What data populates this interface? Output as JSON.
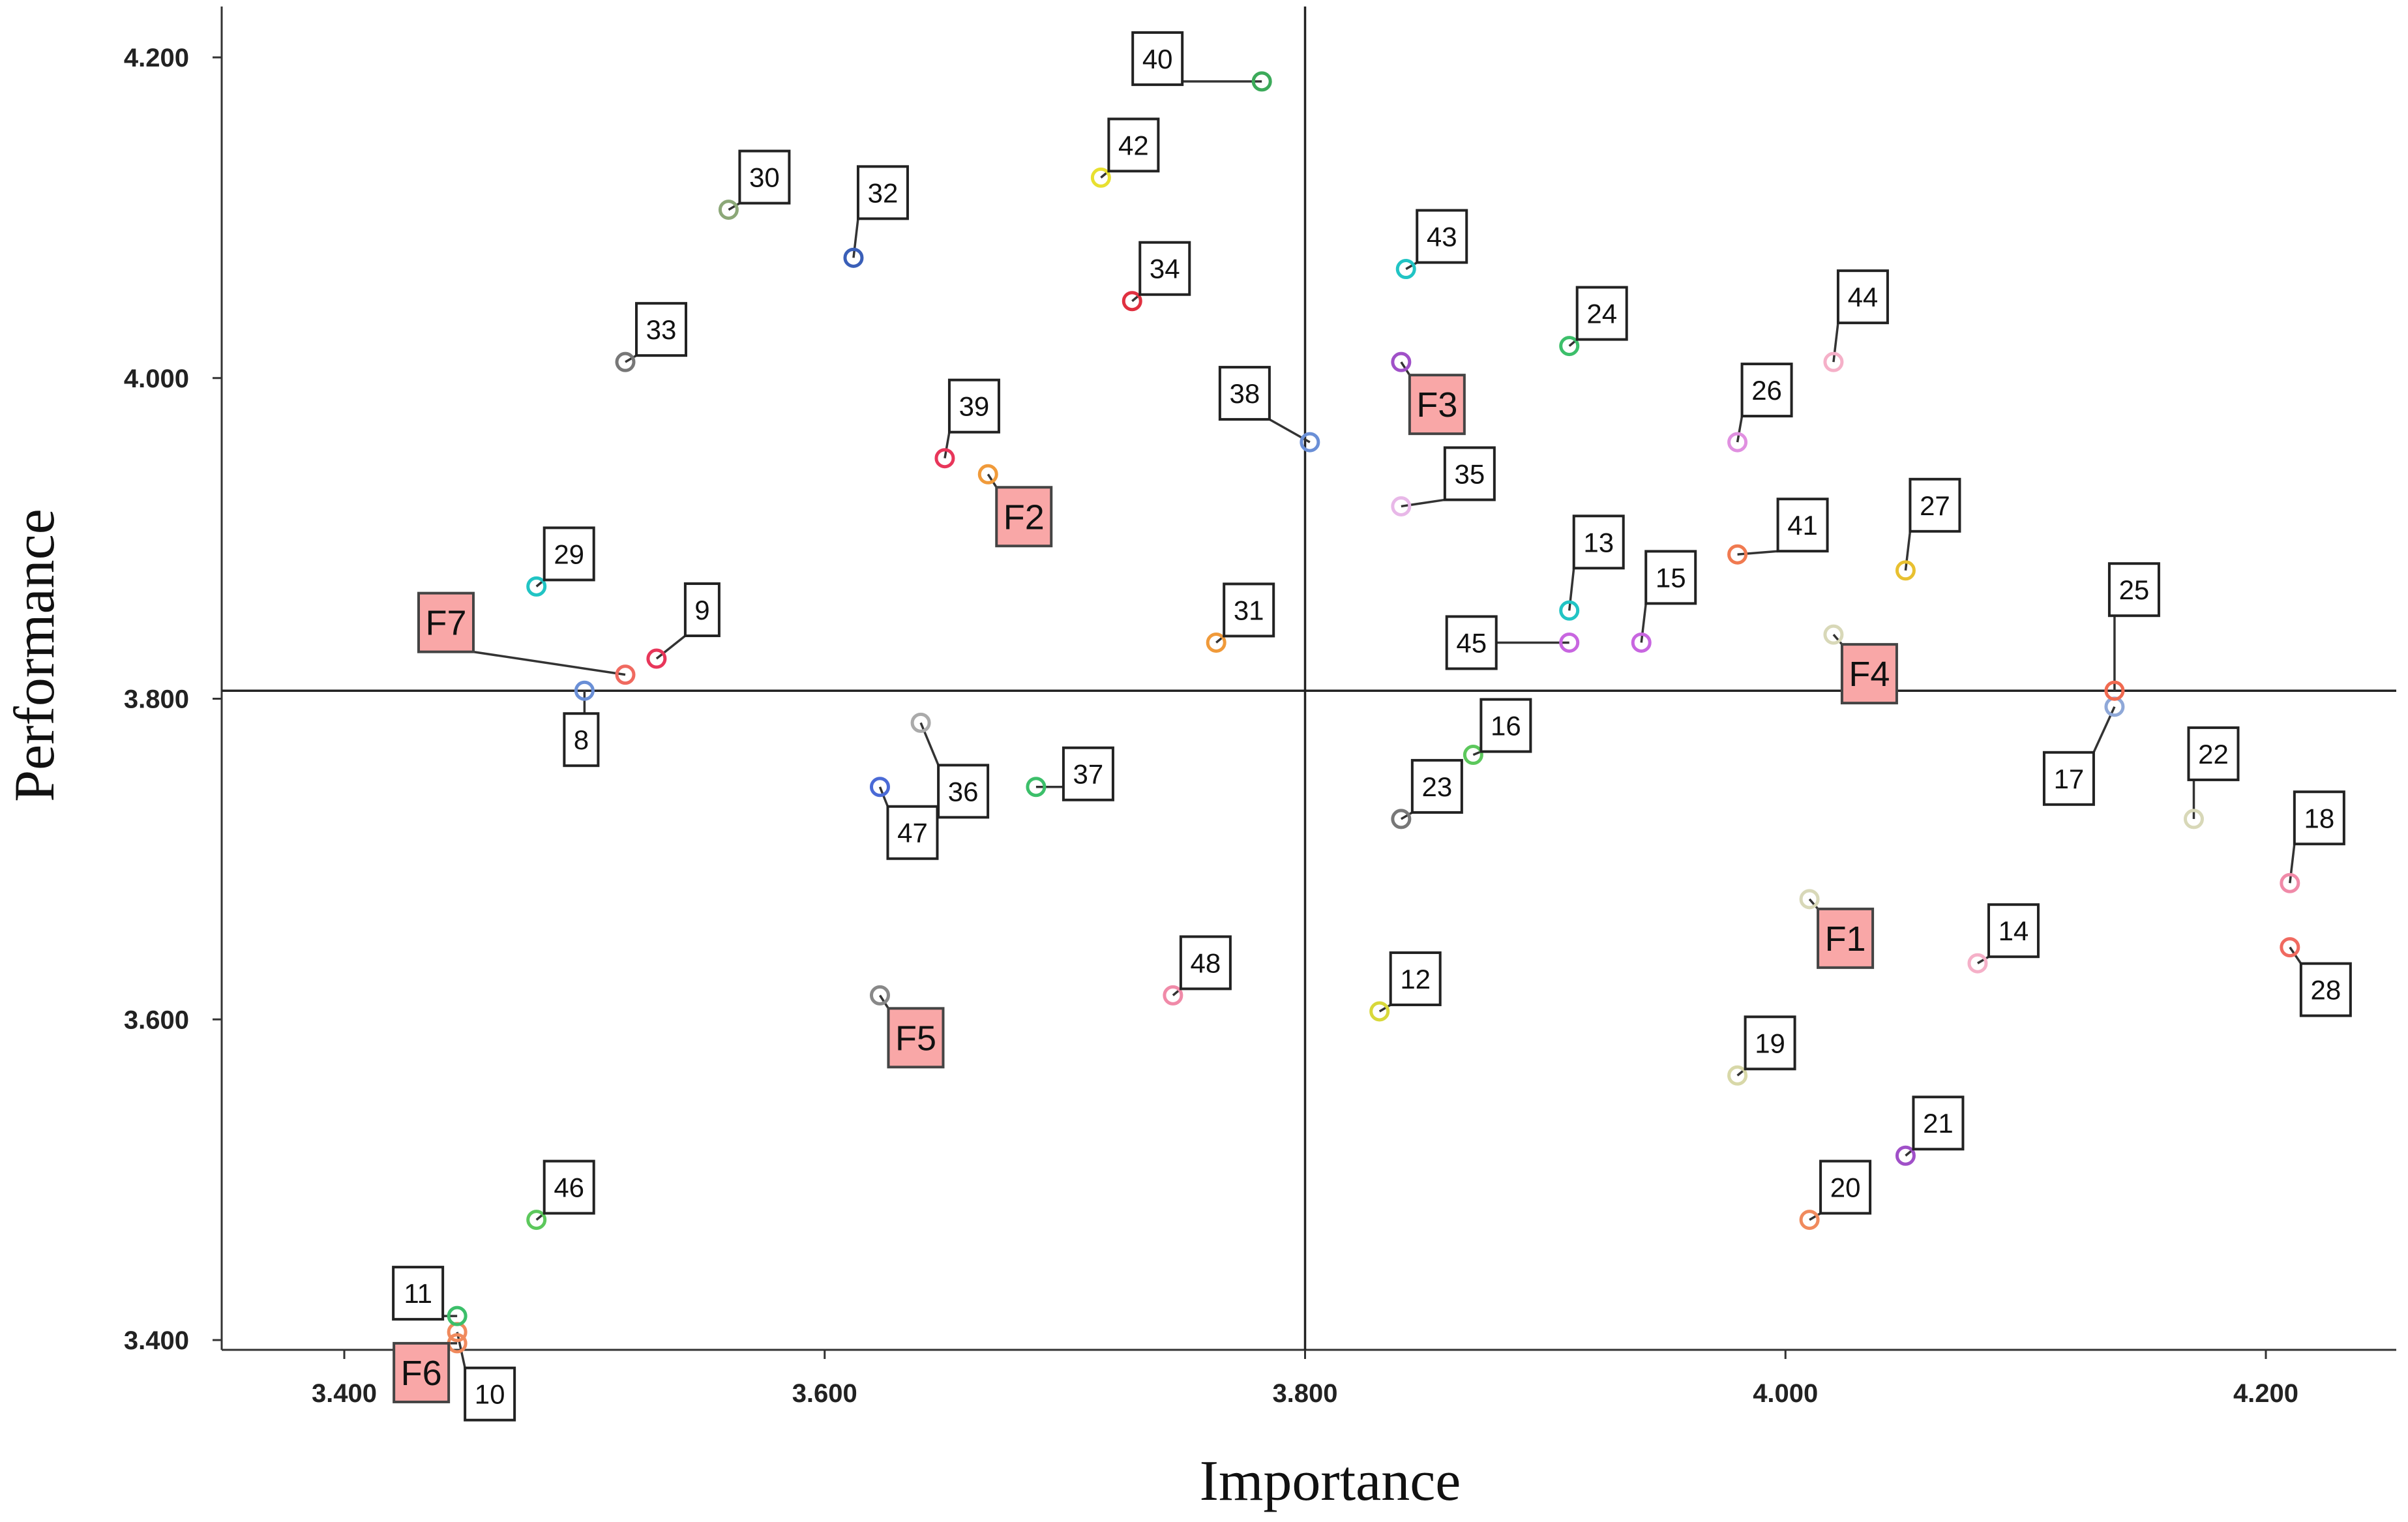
{
  "chart_data": {
    "type": "scatter",
    "xlabel": "Importance",
    "ylabel": "Performance",
    "xlim": [
      3.35,
      4.26
    ],
    "ylim": [
      3.35,
      4.24
    ],
    "xticks": [
      3.4,
      3.6,
      3.8,
      4.0,
      4.2
    ],
    "yticks": [
      3.4,
      3.6,
      3.8,
      4.0,
      4.2
    ],
    "x_tick_labels": [
      "3.400",
      "3.600",
      "3.800",
      "4.000",
      "4.200"
    ],
    "y_tick_labels": [
      "3.400",
      "3.600",
      "3.800",
      "4.000",
      "4.200"
    ],
    "reference_lines": {
      "x": 3.8,
      "y": 3.805
    },
    "grid": false,
    "legend": "none",
    "points": [
      {
        "label": "8",
        "x": 3.5,
        "y": 3.805,
        "color": "#6a8fd6",
        "lx": -5,
        "ly": -75
      },
      {
        "label": "9",
        "x": 3.53,
        "y": 3.825,
        "color": "#e8365a",
        "lx": 70,
        "ly": 75
      },
      {
        "label": "10",
        "x": 3.447,
        "y": 3.405,
        "color": "#f08a5d",
        "lx": 50,
        "ly": -95
      },
      {
        "label": "11",
        "x": 3.447,
        "y": 3.415,
        "color": "#3cbf6a",
        "lx": -60,
        "ly": 35
      },
      {
        "label": "12",
        "x": 3.831,
        "y": 3.605,
        "color": "#d8d83a",
        "lx": 55,
        "ly": 50
      },
      {
        "label": "13",
        "x": 3.91,
        "y": 3.855,
        "color": "#21c4c4",
        "lx": 45,
        "ly": 105
      },
      {
        "label": "14",
        "x": 4.08,
        "y": 3.635,
        "color": "#f5b0c8",
        "lx": 55,
        "ly": 50
      },
      {
        "label": "15",
        "x": 3.94,
        "y": 3.835,
        "color": "#c866e0",
        "lx": 45,
        "ly": 100
      },
      {
        "label": "16",
        "x": 3.87,
        "y": 3.765,
        "color": "#5cc85c",
        "lx": 50,
        "ly": 45
      },
      {
        "label": "17",
        "x": 4.137,
        "y": 3.795,
        "color": "#8fa8d8",
        "lx": -70,
        "ly": -110
      },
      {
        "label": "18",
        "x": 4.21,
        "y": 3.685,
        "color": "#f08aa8",
        "lx": 45,
        "ly": 100
      },
      {
        "label": "19",
        "x": 3.98,
        "y": 3.565,
        "color": "#d8d8a8",
        "lx": 50,
        "ly": 50
      },
      {
        "label": "20",
        "x": 4.01,
        "y": 3.475,
        "color": "#f08a5d",
        "lx": 55,
        "ly": 50
      },
      {
        "label": "21",
        "x": 4.05,
        "y": 3.515,
        "color": "#a050c8",
        "lx": 50,
        "ly": 50
      },
      {
        "label": "22",
        "x": 4.17,
        "y": 3.725,
        "color": "#d8d8b8",
        "lx": 30,
        "ly": 100
      },
      {
        "label": "23",
        "x": 3.84,
        "y": 3.725,
        "color": "#777777",
        "lx": 55,
        "ly": 50
      },
      {
        "label": "24",
        "x": 3.91,
        "y": 4.02,
        "color": "#3cbf6a",
        "lx": 50,
        "ly": 50
      },
      {
        "label": "25",
        "x": 4.137,
        "y": 3.805,
        "color": "#f06a50",
        "lx": 30,
        "ly": 155
      },
      {
        "label": "26",
        "x": 3.98,
        "y": 3.96,
        "color": "#e090e0",
        "lx": 45,
        "ly": 80
      },
      {
        "label": "27",
        "x": 4.05,
        "y": 3.88,
        "color": "#e8c030",
        "lx": 45,
        "ly": 100
      },
      {
        "label": "28",
        "x": 4.21,
        "y": 3.645,
        "color": "#f06a60",
        "lx": 55,
        "ly": -65
      },
      {
        "label": "29",
        "x": 3.48,
        "y": 3.87,
        "color": "#21c4c4",
        "lx": 50,
        "ly": 50
      },
      {
        "label": "30",
        "x": 3.56,
        "y": 4.105,
        "color": "#8ca878",
        "lx": 55,
        "ly": 50
      },
      {
        "label": "31",
        "x": 3.763,
        "y": 3.835,
        "color": "#f09a3a",
        "lx": 50,
        "ly": 50
      },
      {
        "label": "32",
        "x": 3.612,
        "y": 4.075,
        "color": "#3a5fb8",
        "lx": 45,
        "ly": 100
      },
      {
        "label": "33",
        "x": 3.517,
        "y": 4.01,
        "color": "#777777",
        "lx": 55,
        "ly": 50
      },
      {
        "label": "34",
        "x": 3.728,
        "y": 4.048,
        "color": "#e03040",
        "lx": 50,
        "ly": 50
      },
      {
        "label": "35",
        "x": 3.84,
        "y": 3.92,
        "color": "#e8b8e8",
        "lx": 105,
        "ly": 50
      },
      {
        "label": "36",
        "x": 3.64,
        "y": 3.785,
        "color": "#aaaaaa",
        "lx": 65,
        "ly": -105
      },
      {
        "label": "37",
        "x": 3.688,
        "y": 3.745,
        "color": "#3cbf6a",
        "lx": 80,
        "ly": 20
      },
      {
        "label": "38",
        "x": 3.802,
        "y": 3.96,
        "color": "#6a8fd6",
        "lx": -100,
        "ly": 75
      },
      {
        "label": "39",
        "x": 3.65,
        "y": 3.95,
        "color": "#e8365a",
        "lx": 45,
        "ly": 80
      },
      {
        "label": "40",
        "x": 3.782,
        "y": 4.185,
        "color": "#3caa5a",
        "lx": -160,
        "ly": 35
      },
      {
        "label": "41",
        "x": 3.98,
        "y": 3.89,
        "color": "#f07a50",
        "lx": 100,
        "ly": 45
      },
      {
        "label": "42",
        "x": 3.715,
        "y": 4.125,
        "color": "#e8e030",
        "lx": 50,
        "ly": 50
      },
      {
        "label": "43",
        "x": 3.842,
        "y": 4.068,
        "color": "#21c4c4",
        "lx": 55,
        "ly": 50
      },
      {
        "label": "44",
        "x": 4.02,
        "y": 4.01,
        "color": "#f5b0c8",
        "lx": 45,
        "ly": 100
      },
      {
        "label": "45",
        "x": 3.91,
        "y": 3.835,
        "color": "#c866e0",
        "lx": -150,
        "ly": 0
      },
      {
        "label": "46",
        "x": 3.48,
        "y": 3.475,
        "color": "#5cc85c",
        "lx": 50,
        "ly": 50
      },
      {
        "label": "47",
        "x": 3.623,
        "y": 3.745,
        "color": "#4a6ad6",
        "lx": 50,
        "ly": -70
      },
      {
        "label": "48",
        "x": 3.745,
        "y": 3.615,
        "color": "#f08aa8",
        "lx": 50,
        "ly": 50
      },
      {
        "label": "F1",
        "x": 4.01,
        "y": 3.675,
        "color": "#d8d8b8",
        "lx": 55,
        "ly": -60,
        "factor": true
      },
      {
        "label": "F2",
        "x": 3.668,
        "y": 3.94,
        "color": "#f09a3a",
        "lx": 55,
        "ly": -65,
        "factor": true
      },
      {
        "label": "F3",
        "x": 3.84,
        "y": 4.01,
        "color": "#a050c8",
        "lx": 55,
        "ly": -65,
        "factor": true
      },
      {
        "label": "F4",
        "x": 4.02,
        "y": 3.84,
        "color": "#d8d8b8",
        "lx": 55,
        "ly": -60,
        "factor": true
      },
      {
        "label": "F5",
        "x": 3.623,
        "y": 3.615,
        "color": "#888888",
        "lx": 55,
        "ly": -65,
        "factor": true
      },
      {
        "label": "F6",
        "x": 3.447,
        "y": 3.398,
        "color": "#f08a5d",
        "lx": -55,
        "ly": -45,
        "factor": true
      },
      {
        "label": "F7",
        "x": 3.517,
        "y": 3.815,
        "color": "#f06a60",
        "lx": -275,
        "ly": 80,
        "factor": true
      }
    ]
  }
}
